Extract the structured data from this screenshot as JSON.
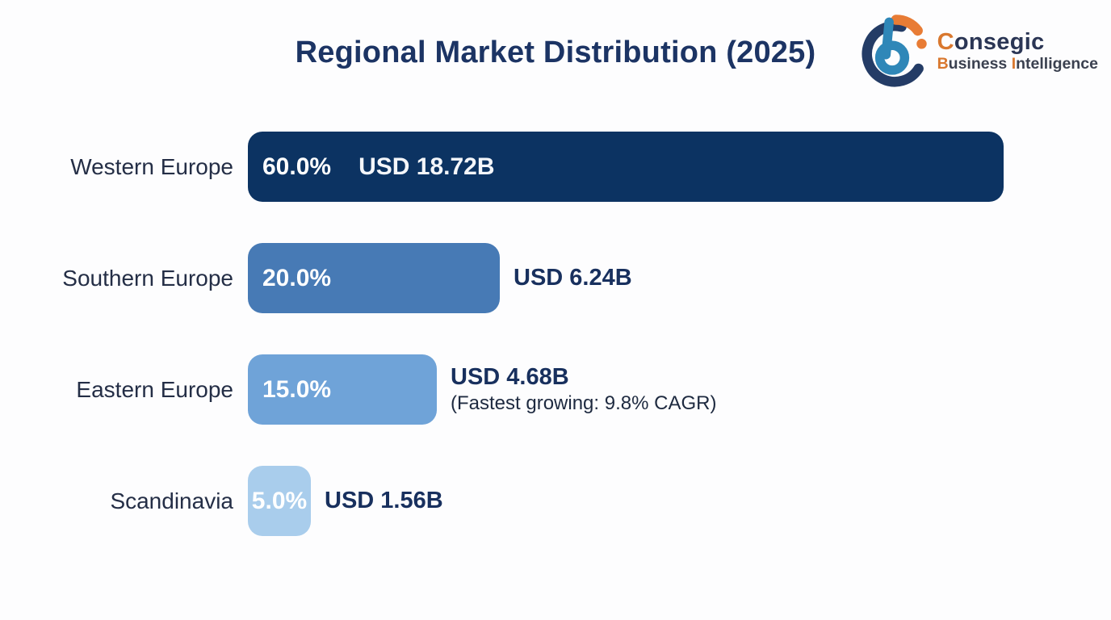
{
  "page": {
    "background": "#fdfdfe",
    "title": "Regional Market Distribution (2025)",
    "title_color": "#1c3464"
  },
  "logo": {
    "brand_accent_letter": "C",
    "brand_rest": "onsegic",
    "tagline_accent_letter_1": "B",
    "tagline_part_1": "usiness ",
    "tagline_accent_letter_2": "I",
    "tagline_part_2": "ntelligence",
    "orange": "#d9782f",
    "navy": "#2b3655",
    "blue": "#2f87b8"
  },
  "chart_data": {
    "type": "bar",
    "orientation": "horizontal",
    "title": "Regional Market Distribution (2025)",
    "categories": [
      "Western Europe",
      "Southern Europe",
      "Eastern Europe",
      "Scandinavia"
    ],
    "values_percent": [
      60.0,
      20.0,
      15.0,
      5.0
    ],
    "values_usd_billion": [
      18.72,
      6.24,
      4.68,
      1.56
    ],
    "xlim_percent": [
      0,
      100
    ],
    "legend": "none",
    "grid": false,
    "rows": [
      {
        "label": "Western Europe",
        "percent_text": "60.0%",
        "percent_value": 60,
        "value_text": "USD 18.72B",
        "value_inside_bar": true,
        "annotation": "",
        "bar_color": "#0c3362"
      },
      {
        "label": "Southern Europe",
        "percent_text": "20.0%",
        "percent_value": 20,
        "value_text": "USD 6.24B",
        "value_inside_bar": false,
        "annotation": "",
        "bar_color": "#477ab5"
      },
      {
        "label": "Eastern Europe",
        "percent_text": "15.0%",
        "percent_value": 15,
        "value_text": "USD 4.68B",
        "value_inside_bar": false,
        "annotation": "(Fastest growing: 9.8% CAGR)",
        "bar_color": "#6fa3d8"
      },
      {
        "label": "Scandinavia",
        "percent_text": "5.0%",
        "percent_value": 5,
        "value_text": "USD 1.56B",
        "value_inside_bar": false,
        "annotation": "",
        "bar_color": "#a9cdec"
      }
    ]
  }
}
